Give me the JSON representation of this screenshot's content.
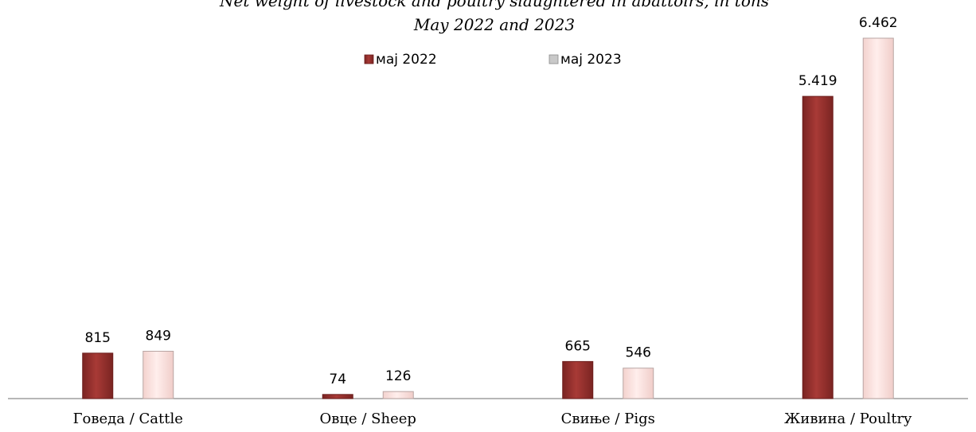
{
  "chart_data": {
    "type": "bar",
    "title": "Net weight of livestock and poultry slaughtered in abattoirs, in tons",
    "subtitle": "May 2022 and 2023",
    "categories": [
      "Говеда / Cattle",
      "Овце / Sheep",
      "Свиње / Pigs",
      "Живина / Poultry"
    ],
    "series": [
      {
        "name": "мај 2022",
        "values": [
          815,
          74,
          665,
          5419
        ],
        "labels": [
          "815",
          "74",
          "665",
          "5.419"
        ],
        "color": "#9e3431",
        "stroke": "#6d1f1d"
      },
      {
        "name": "мај 2023",
        "values": [
          849,
          126,
          546,
          6462
        ],
        "labels": [
          "849",
          "126",
          "546",
          "6.462"
        ],
        "color": "#fde4e1",
        "stroke": "#b9a5a3"
      }
    ],
    "ylim": [
      0,
      6462
    ],
    "grid": false,
    "legend_position": "top-center"
  }
}
